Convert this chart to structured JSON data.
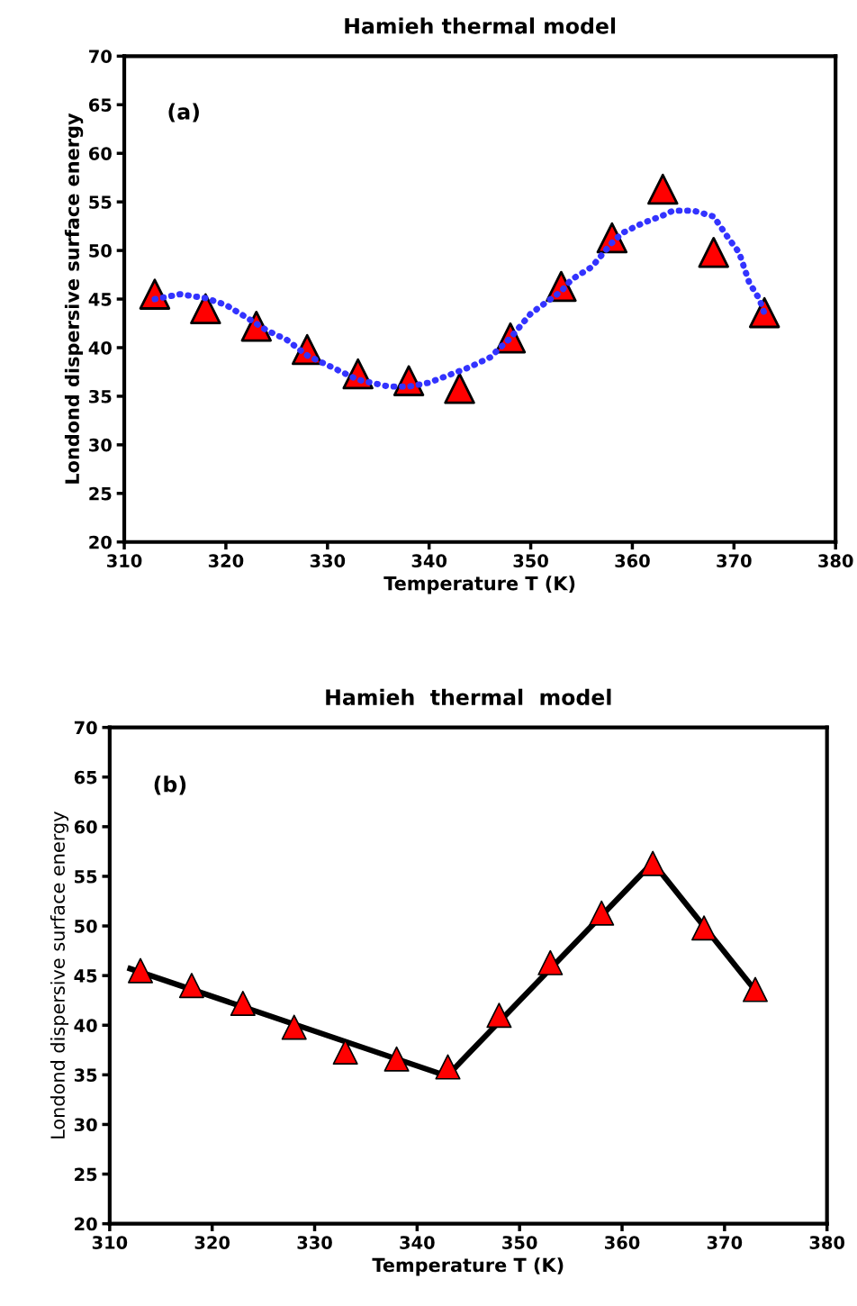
{
  "chart_data": [
    {
      "type": "scatter",
      "title": "Hamieh thermal model",
      "xlabel": "Temperature T (K)",
      "ylabel": "Londond dispersive surface energy",
      "annotations": [
        "(a)"
      ],
      "xlim": [
        310,
        380
      ],
      "xticks": [
        310,
        320,
        330,
        340,
        350,
        360,
        370,
        380
      ],
      "ylim": [
        20,
        70
      ],
      "yticks": [
        20,
        25,
        30,
        35,
        40,
        45,
        50,
        55,
        60,
        65,
        70
      ],
      "grid": false,
      "series": [
        {
          "type": "line",
          "color": "#3333ff",
          "line_style": "dotted",
          "marker": "none",
          "x": [
            313,
            315.5,
            318,
            320,
            322.5,
            324,
            326,
            328,
            330,
            333,
            336,
            338,
            340,
            342,
            344,
            346,
            348,
            350,
            353,
            354,
            356,
            358,
            359,
            361,
            363,
            364,
            366,
            368,
            369.5,
            370.5,
            371.5,
            372.5,
            373
          ],
          "values": [
            45,
            45.5,
            45.1,
            44.4,
            42.8,
            41.8,
            40.8,
            39.2,
            38.2,
            36.7,
            36,
            36,
            36.4,
            37.2,
            38,
            39,
            41,
            43.5,
            45.8,
            47,
            48.3,
            50.8,
            51.8,
            52.8,
            53.6,
            54.1,
            54.1,
            53.5,
            51.2,
            49.8,
            46.7,
            45,
            43.5
          ]
        },
        {
          "color": "#ff0000",
          "marker": "triangle",
          "x": [
            313,
            318,
            323,
            328,
            333,
            338,
            343,
            348,
            353,
            358,
            363,
            368,
            373
          ],
          "values": [
            45.5,
            44,
            42.2,
            39.8,
            37.3,
            36.6,
            35.8,
            41,
            46.3,
            51.3,
            56.3,
            49.8,
            43.6
          ]
        }
      ]
    },
    {
      "type": "scatter",
      "title": "Hamieh  thermal  model",
      "xlabel": "Temperature T (K)",
      "ylabel": "Londond dispersive surface energy",
      "annotations": [
        "(b)"
      ],
      "xlim": [
        310,
        380
      ],
      "xticks": [
        310,
        320,
        330,
        340,
        350,
        360,
        370,
        380
      ],
      "ylim": [
        20,
        70
      ],
      "yticks": [
        20,
        25,
        30,
        35,
        40,
        45,
        50,
        55,
        60,
        65,
        70
      ],
      "grid": false,
      "series": [
        {
          "type": "line",
          "color": "#000000",
          "line_style": "solid",
          "marker": "none",
          "x": [
            312,
            342
          ],
          "values": [
            45.7,
            35.2
          ]
        },
        {
          "type": "line",
          "color": "#000000",
          "line_style": "solid",
          "marker": "none",
          "x": [
            343.5,
            363,
            373
          ],
          "values": [
            35.5,
            56.4,
            43.5
          ]
        },
        {
          "color": "#ff0000",
          "marker": "triangle",
          "x": [
            313,
            318,
            323,
            328,
            333,
            338,
            343,
            348,
            353,
            358,
            363,
            368,
            373
          ],
          "values": [
            45.5,
            44,
            42.2,
            39.8,
            37.3,
            36.6,
            35.8,
            41,
            46.3,
            51.3,
            56.3,
            49.8,
            43.6
          ]
        }
      ]
    }
  ]
}
